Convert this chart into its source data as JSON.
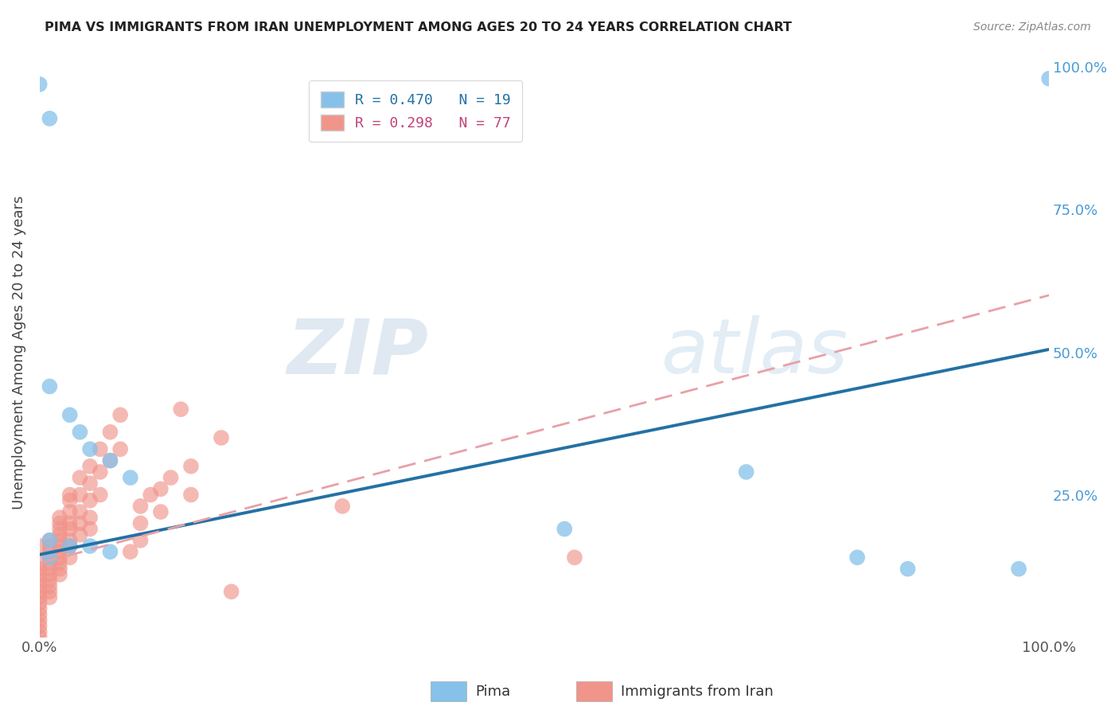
{
  "title": "PIMA VS IMMIGRANTS FROM IRAN UNEMPLOYMENT AMONG AGES 20 TO 24 YEARS CORRELATION CHART",
  "source": "Source: ZipAtlas.com",
  "ylabel": "Unemployment Among Ages 20 to 24 years",
  "xlim": [
    0.0,
    1.0
  ],
  "ylim": [
    0.0,
    1.0
  ],
  "watermark_zip": "ZIP",
  "watermark_atlas": "atlas",
  "legend_blue_r": "R = 0.470",
  "legend_blue_n": "N = 19",
  "legend_pink_r": "R = 0.298",
  "legend_pink_n": "N = 77",
  "blue_color": "#85c1e9",
  "pink_color": "#f1948a",
  "blue_line_color": "#2471a3",
  "pink_line_color": "#e8a0a8",
  "blue_scatter_x": [
    0.01,
    0.03,
    0.04,
    0.05,
    0.07,
    0.09,
    0.01,
    0.03,
    0.05,
    0.07,
    0.01,
    0.0,
    0.01,
    0.52,
    0.7,
    0.81,
    0.86,
    0.97,
    1.0
  ],
  "blue_scatter_y": [
    0.44,
    0.39,
    0.36,
    0.33,
    0.31,
    0.28,
    0.17,
    0.16,
    0.16,
    0.15,
    0.14,
    0.97,
    0.91,
    0.19,
    0.29,
    0.14,
    0.12,
    0.12,
    0.98
  ],
  "pink_scatter_x": [
    0.0,
    0.0,
    0.0,
    0.0,
    0.0,
    0.0,
    0.0,
    0.0,
    0.0,
    0.0,
    0.0,
    0.0,
    0.0,
    0.0,
    0.0,
    0.01,
    0.01,
    0.01,
    0.01,
    0.01,
    0.01,
    0.01,
    0.01,
    0.01,
    0.01,
    0.01,
    0.02,
    0.02,
    0.02,
    0.02,
    0.02,
    0.02,
    0.02,
    0.02,
    0.02,
    0.02,
    0.02,
    0.03,
    0.03,
    0.03,
    0.03,
    0.03,
    0.03,
    0.03,
    0.03,
    0.04,
    0.04,
    0.04,
    0.04,
    0.04,
    0.05,
    0.05,
    0.05,
    0.05,
    0.05,
    0.06,
    0.06,
    0.06,
    0.07,
    0.07,
    0.08,
    0.08,
    0.09,
    0.1,
    0.1,
    0.1,
    0.11,
    0.12,
    0.12,
    0.13,
    0.14,
    0.15,
    0.15,
    0.18,
    0.19,
    0.3,
    0.53
  ],
  "pink_scatter_y": [
    0.13,
    0.12,
    0.11,
    0.1,
    0.09,
    0.08,
    0.07,
    0.06,
    0.05,
    0.04,
    0.03,
    0.02,
    0.01,
    0.0,
    0.16,
    0.17,
    0.16,
    0.15,
    0.14,
    0.13,
    0.12,
    0.11,
    0.1,
    0.09,
    0.08,
    0.07,
    0.21,
    0.2,
    0.19,
    0.18,
    0.17,
    0.16,
    0.15,
    0.14,
    0.13,
    0.12,
    0.11,
    0.25,
    0.24,
    0.22,
    0.2,
    0.19,
    0.17,
    0.16,
    0.14,
    0.28,
    0.25,
    0.22,
    0.2,
    0.18,
    0.3,
    0.27,
    0.24,
    0.21,
    0.19,
    0.33,
    0.29,
    0.25,
    0.36,
    0.31,
    0.39,
    0.33,
    0.15,
    0.23,
    0.2,
    0.17,
    0.25,
    0.26,
    0.22,
    0.28,
    0.4,
    0.3,
    0.25,
    0.35,
    0.08,
    0.23,
    0.14
  ],
  "blue_line_x": [
    0.0,
    1.0
  ],
  "blue_line_y": [
    0.145,
    0.505
  ],
  "pink_line_x": [
    0.0,
    1.0
  ],
  "pink_line_y": [
    0.13,
    0.6
  ],
  "background_color": "#ffffff",
  "grid_color": "#cccccc"
}
